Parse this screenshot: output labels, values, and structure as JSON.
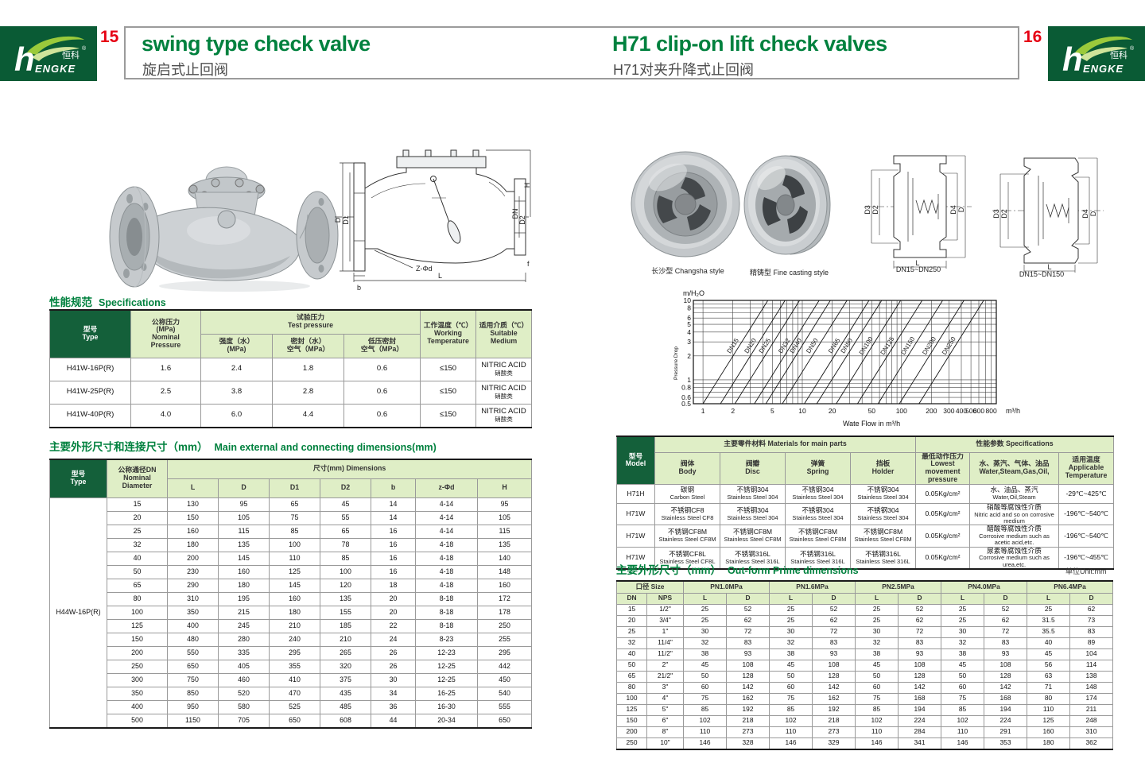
{
  "logo": {
    "brand_h": "h",
    "brand_rest": "ENGKE",
    "brand_cn": "恒科",
    "reg": "®"
  },
  "header": {
    "left_page_no": "15",
    "left_title": "swing type check valve",
    "left_subtitle": "旋启式止回阀",
    "right_page_no": "16",
    "right_title": "H71 clip-on lift check valves",
    "right_subtitle": "H71对夹升降式止回阀"
  },
  "left": {
    "spec_section": {
      "cn": "性能规范",
      "en": "Specifications"
    },
    "spec_table": {
      "h_type": [
        "型号",
        "Type"
      ],
      "h_nominal": [
        "公称压力",
        "(MPa)",
        "Nominal",
        "Pressure"
      ],
      "h_test": [
        "试验压力",
        "Test pressure"
      ],
      "h_strength": [
        "强度（水）",
        "(MPa)"
      ],
      "h_seal": [
        "密封（水）",
        "空气（MPa）"
      ],
      "h_lowseal": [
        "低压密封",
        "空气（MPa）"
      ],
      "h_working": [
        "工作温度（℃）",
        "Working",
        "Temperature"
      ],
      "h_medium": [
        "适用介质（℃）",
        "Suitable",
        "Medium"
      ],
      "rows": [
        [
          "H41W-16P(R)",
          "1.6",
          "2.4",
          "1.8",
          "0.6",
          "≤150",
          "NITRIC ACID\n硝酸类"
        ],
        [
          "H41W-25P(R)",
          "2.5",
          "3.8",
          "2.8",
          "0.6",
          "≤150",
          "NITRIC ACID\n硝酸类"
        ],
        [
          "H41W-40P(R)",
          "4.0",
          "6.0",
          "4.4",
          "0.6",
          "≤150",
          "NITRIC ACID\n硝酸类"
        ]
      ]
    },
    "dim_section": {
      "cn": "主要外形尺寸和连接尺寸（mm）",
      "en": "Main external and connecting dimensions(mm)"
    },
    "dim_table": {
      "h_type": [
        "型号",
        "Type"
      ],
      "h_dn": [
        "公称通径DN",
        "Nominal",
        "Diameter"
      ],
      "h_dims": "尺寸(mm) Dimensions",
      "cols": [
        "L",
        "D",
        "D1",
        "D2",
        "b",
        "z-Φd",
        "H"
      ],
      "type_label": "H44W-16P(R)",
      "rows": [
        [
          "15",
          "130",
          "95",
          "65",
          "45",
          "14",
          "4-14",
          "95"
        ],
        [
          "20",
          "150",
          "105",
          "75",
          "55",
          "14",
          "4-14",
          "105"
        ],
        [
          "25",
          "160",
          "115",
          "85",
          "65",
          "16",
          "4-14",
          "115"
        ],
        [
          "32",
          "180",
          "135",
          "100",
          "78",
          "16",
          "4-18",
          "135"
        ],
        [
          "40",
          "200",
          "145",
          "110",
          "85",
          "16",
          "4-18",
          "140"
        ],
        [
          "50",
          "230",
          "160",
          "125",
          "100",
          "16",
          "4-18",
          "148"
        ],
        [
          "65",
          "290",
          "180",
          "145",
          "120",
          "18",
          "4-18",
          "160"
        ],
        [
          "80",
          "310",
          "195",
          "160",
          "135",
          "20",
          "8-18",
          "172"
        ],
        [
          "100",
          "350",
          "215",
          "180",
          "155",
          "20",
          "8-18",
          "178"
        ],
        [
          "125",
          "400",
          "245",
          "210",
          "185",
          "22",
          "8-18",
          "250"
        ],
        [
          "150",
          "480",
          "280",
          "240",
          "210",
          "24",
          "8-23",
          "255"
        ],
        [
          "200",
          "550",
          "335",
          "295",
          "265",
          "26",
          "12-23",
          "295"
        ],
        [
          "250",
          "650",
          "405",
          "355",
          "320",
          "26",
          "12-25",
          "442"
        ],
        [
          "300",
          "750",
          "460",
          "410",
          "375",
          "30",
          "12-25",
          "450"
        ],
        [
          "350",
          "850",
          "520",
          "470",
          "435",
          "34",
          "16-25",
          "540"
        ],
        [
          "400",
          "950",
          "580",
          "525",
          "485",
          "36",
          "16-30",
          "555"
        ],
        [
          "500",
          "1150",
          "705",
          "650",
          "608",
          "44",
          "20-34",
          "650"
        ]
      ]
    },
    "drawing_labels": [
      "D",
      "D1",
      "DN",
      "D2",
      "H",
      "Z-Φd",
      "b",
      "L",
      "f"
    ]
  },
  "right": {
    "captions": [
      "长沙型 Changsha style",
      "精铸型 Fine casting style",
      "DN15~DN250",
      "DN15~DN150"
    ],
    "drawing_labels": [
      "D3",
      "D2",
      "D4",
      "D",
      "L"
    ],
    "materials_table": {
      "h_model": [
        "型号",
        "Model"
      ],
      "h_parts": "主要零件材料 Materials for main parts",
      "h_specs": "性能参数 Specifications",
      "h_body": [
        "阀体",
        "Body"
      ],
      "h_disc": [
        "阀瓣",
        "Disc"
      ],
      "h_spring": [
        "弹簧",
        "Spring"
      ],
      "h_holder": [
        "挡板",
        "Holder"
      ],
      "h_pressure": [
        "最低动作压力",
        "Lowest movement",
        "pressure"
      ],
      "h_medium": [
        "水、蒸汽、气体、油品",
        "Water,Steam,Gas,Oil,"
      ],
      "h_temp": [
        "适用温度",
        "Applicable",
        "Temperature"
      ],
      "rows": [
        [
          "H71H",
          "碳钢\nCarbon Steel",
          "不锈钢304\nStainless Steel 304",
          "不锈钢304\nStainless Steel 304",
          "不锈钢304\nStainless Steel 304",
          "0.05Kg/cm²",
          "水、油品、蒸汽\nWater,Oil,Steam",
          "-29℃~425℃"
        ],
        [
          "H71W",
          "不锈钢CF8\nStainless Steel CF8",
          "不锈钢304\nStainless Steel 304",
          "不锈钢304\nStainless Steel 304",
          "不锈钢304\nStainless Steel 304",
          "0.05Kg/cm²",
          "硝酸等腐蚀性介质\nNitric acid and so on corrosive medium",
          "-196℃~540℃"
        ],
        [
          "H71W",
          "不锈钢CF8M\nStainless Steel CF8M",
          "不锈钢CF8M\nStainless Steel CF8M",
          "不锈钢CF8M\nStainless Steel CF8M",
          "不锈钢CF8M\nStainless Steel CF8M",
          "0.05Kg/cm²",
          "醋酸等腐蚀性介质\nCorrosive medium such as acetic acid,etc.",
          "-196℃~540℃"
        ],
        [
          "H71W",
          "不锈钢CF8L\nStainless Steel CF8L",
          "不锈钢316L\nStainless Steel 316L",
          "不锈钢316L\nStainless Steel 316L",
          "不锈钢316L\nStainless Steel 316L",
          "0.05Kg/cm²",
          "尿素等腐蚀性介质\nCorrosive medium such as urea,etc.",
          "-196℃~455℃"
        ]
      ]
    },
    "outform_section": {
      "cn": "主要外形尺寸（mm）",
      "en": "Out-form Prime dimensions",
      "unit": "单位Unit:mm"
    },
    "outform_table": {
      "h_size": "口径 Size",
      "h_dn": "DN",
      "h_nps": "NPS",
      "pn": [
        "PN1.0MPa",
        "PN1.6MPa",
        "PN2.5MPa",
        "PN4.0MPa",
        "PN6.4MPa"
      ],
      "ld_cols": [
        "L",
        "D",
        "L",
        "D",
        "L",
        "D",
        "L",
        "D",
        "L",
        "D"
      ],
      "rows": [
        [
          "15",
          "1/2\"",
          "25",
          "52",
          "25",
          "52",
          "25",
          "52",
          "25",
          "52",
          "25",
          "62"
        ],
        [
          "20",
          "3/4\"",
          "25",
          "62",
          "25",
          "62",
          "25",
          "62",
          "25",
          "62",
          "31.5",
          "73"
        ],
        [
          "25",
          "1\"",
          "30",
          "72",
          "30",
          "72",
          "30",
          "72",
          "30",
          "72",
          "35.5",
          "83"
        ],
        [
          "32",
          "11/4\"",
          "32",
          "83",
          "32",
          "83",
          "32",
          "83",
          "32",
          "83",
          "40",
          "89"
        ],
        [
          "40",
          "11/2\"",
          "38",
          "93",
          "38",
          "93",
          "38",
          "93",
          "38",
          "93",
          "45",
          "104"
        ],
        [
          "50",
          "2\"",
          "45",
          "108",
          "45",
          "108",
          "45",
          "108",
          "45",
          "108",
          "56",
          "114"
        ],
        [
          "65",
          "21/2\"",
          "50",
          "128",
          "50",
          "128",
          "50",
          "128",
          "50",
          "128",
          "63",
          "138"
        ],
        [
          "80",
          "3\"",
          "60",
          "142",
          "60",
          "142",
          "60",
          "142",
          "60",
          "142",
          "71",
          "148"
        ],
        [
          "100",
          "4\"",
          "75",
          "162",
          "75",
          "162",
          "75",
          "168",
          "75",
          "168",
          "80",
          "174"
        ],
        [
          "125",
          "5\"",
          "85",
          "192",
          "85",
          "192",
          "85",
          "194",
          "85",
          "194",
          "110",
          "211"
        ],
        [
          "150",
          "6\"",
          "102",
          "218",
          "102",
          "218",
          "102",
          "224",
          "102",
          "224",
          "125",
          "248"
        ],
        [
          "200",
          "8\"",
          "110",
          "273",
          "110",
          "273",
          "110",
          "284",
          "110",
          "291",
          "160",
          "310"
        ],
        [
          "250",
          "10\"",
          "146",
          "328",
          "146",
          "329",
          "146",
          "341",
          "146",
          "353",
          "180",
          "362"
        ]
      ]
    }
  },
  "chart_data": {
    "type": "line",
    "title": "",
    "xlabel": "Wate Flow in m³/h",
    "x_axis_unit": "m³/h",
    "ylabel": "Pressure Drop",
    "y_axis_unit": "m/H₂O",
    "x_scale": "log",
    "y_scale": "log",
    "xlim": [
      0.8,
      900
    ],
    "ylim": [
      0.5,
      10
    ],
    "x_ticks": [
      1,
      2,
      5,
      10,
      20,
      50,
      100,
      200,
      300,
      400,
      500,
      600,
      800
    ],
    "y_ticks": [
      10,
      8,
      6,
      5,
      4,
      3,
      2,
      1,
      0.8,
      0.6,
      0.5
    ],
    "grid": true,
    "legend_position": "labels-on-lines",
    "note": "Each DN line is straight in log-log space; pressure drop rises with flow squared between the two listed points.",
    "lines": [
      {
        "label": "DN15",
        "flow_at_drop_0p5": 1.0,
        "flow_at_drop_10": 4.5
      },
      {
        "label": "DN20",
        "flow_at_drop_0p5": 1.5,
        "flow_at_drop_10": 6.7
      },
      {
        "label": "DN25",
        "flow_at_drop_0p5": 2.1,
        "flow_at_drop_10": 9.4
      },
      {
        "label": "DN32",
        "flow_at_drop_0p5": 3.3,
        "flow_at_drop_10": 14.8
      },
      {
        "label": "DN40",
        "flow_at_drop_0p5": 4.3,
        "flow_at_drop_10": 19.2
      },
      {
        "label": "DN50",
        "flow_at_drop_0p5": 6.3,
        "flow_at_drop_10": 28.2
      },
      {
        "label": "DN65",
        "flow_at_drop_0p5": 10.5,
        "flow_at_drop_10": 47
      },
      {
        "label": "DN80",
        "flow_at_drop_0p5": 14,
        "flow_at_drop_10": 63
      },
      {
        "label": "DN100",
        "flow_at_drop_0p5": 22,
        "flow_at_drop_10": 98
      },
      {
        "label": "DN125",
        "flow_at_drop_0p5": 36,
        "flow_at_drop_10": 161
      },
      {
        "label": "DN150",
        "flow_at_drop_0p5": 58,
        "flow_at_drop_10": 259
      },
      {
        "label": "DN200",
        "flow_at_drop_0p5": 95,
        "flow_at_drop_10": 425
      },
      {
        "label": "DN250",
        "flow_at_drop_0p5": 150,
        "flow_at_drop_10": 671
      }
    ]
  }
}
